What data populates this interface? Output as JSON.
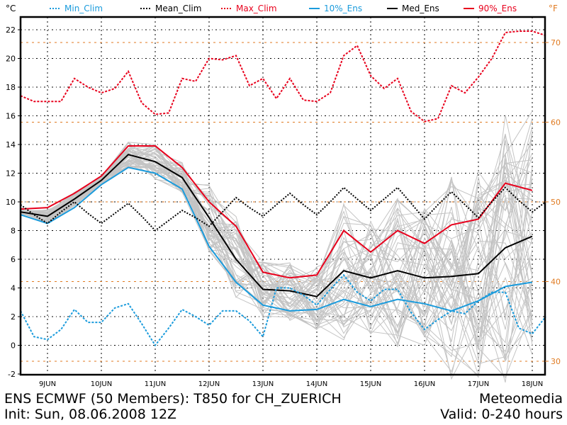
{
  "chart_data": {
    "type": "line",
    "title": "ENS ECMWF (50 Members): T850 for CH_ZUERICH",
    "subtitle": "Init: Sun, 08.06.2008 12Z",
    "provider": "Meteomedia",
    "validity": "Valid: 0-240 hours",
    "ylabel_left": "°C",
    "ylabel_right": "°F",
    "ylim": [
      -2,
      23
    ],
    "yticks_left": [
      -2,
      0,
      2,
      4,
      6,
      8,
      10,
      12,
      14,
      16,
      18,
      20,
      22
    ],
    "yticks_right": [
      30,
      40,
      50,
      60,
      70
    ],
    "xticks": [
      "9JUN",
      "10JUN",
      "11JUN",
      "12JUN",
      "13JUN",
      "14JUN",
      "15JUN",
      "16JUN",
      "17JUN",
      "18JUN"
    ],
    "x_hours_ens": [
      0,
      12,
      24,
      36,
      48,
      60,
      72,
      84,
      96,
      108,
      120,
      132,
      144,
      156,
      168,
      180,
      192,
      204,
      216,
      228
    ],
    "x_hours_clim": [
      0,
      6,
      12,
      18,
      24,
      30,
      36,
      42,
      48,
      54,
      60,
      66,
      72,
      78,
      84,
      90,
      96,
      102,
      108,
      114,
      120,
      126,
      132,
      138,
      144,
      150,
      156,
      162,
      168,
      174,
      180,
      186,
      192,
      198,
      204,
      210,
      216,
      222,
      228,
      234
    ],
    "xlim_hours": [
      0,
      234
    ],
    "grid": true,
    "legend": [
      {
        "key": "min_clim",
        "label": "Min_Clim",
        "color": "#1a9bdc",
        "style": "dotted"
      },
      {
        "key": "mean_clim",
        "label": "Mean_Clim",
        "color": "#000000",
        "style": "dotted"
      },
      {
        "key": "max_clim",
        "label": "Max_Clim",
        "color": "#e8001c",
        "style": "dotted"
      },
      {
        "key": "p10",
        "label": "10%_Ens",
        "color": "#1a9bdc",
        "style": "solid"
      },
      {
        "key": "med",
        "label": "Med_Ens",
        "color": "#000000",
        "style": "solid"
      },
      {
        "key": "p90",
        "label": "90%_Ens",
        "color": "#e8001c",
        "style": "solid"
      }
    ],
    "series": [
      {
        "name": "90%_Ens",
        "key": "p90",
        "values": [
          9.5,
          9.6,
          10.6,
          11.8,
          13.9,
          13.9,
          12.4,
          10.0,
          8.3,
          5.1,
          4.7,
          4.9,
          8.0,
          6.5,
          8.0,
          7.1,
          8.4,
          8.8,
          11.3,
          10.8
        ]
      },
      {
        "name": "Med_Ens",
        "key": "med",
        "values": [
          9.3,
          9.0,
          10.2,
          11.5,
          13.3,
          12.8,
          11.7,
          8.9,
          6.0,
          3.9,
          3.8,
          3.4,
          5.2,
          4.7,
          5.2,
          4.7,
          4.8,
          5.0,
          6.8,
          7.6
        ]
      },
      {
        "name": "10%_Ens",
        "key": "p10",
        "values": [
          9.1,
          8.5,
          9.6,
          11.2,
          12.4,
          12.0,
          10.9,
          6.9,
          4.4,
          2.8,
          2.4,
          2.5,
          3.2,
          2.7,
          3.2,
          2.9,
          2.4,
          3.1,
          4.1,
          4.4
        ]
      },
      {
        "name": "Max_Clim",
        "key": "max_clim",
        "values": [
          17.4,
          17.0,
          17.0,
          17.0,
          18.6,
          18.0,
          17.6,
          17.9,
          19.1,
          16.9,
          16.1,
          16.2,
          18.6,
          18.4,
          20.0,
          19.9,
          20.2,
          18.1,
          18.6,
          17.2,
          18.6,
          17.1,
          17.0,
          17.6,
          20.2,
          20.9,
          18.8,
          17.9,
          18.6,
          16.3,
          15.6,
          15.8,
          18.1,
          17.6,
          18.7,
          20.0,
          21.8,
          21.9,
          21.9,
          21.6
        ]
      },
      {
        "name": "Mean_Clim",
        "key": "mean_clim",
        "values": [
          9.8,
          9.1,
          8.5,
          9.3,
          10.0,
          9.2,
          8.5,
          9.2,
          9.9,
          9.0,
          8.0,
          8.7,
          9.4,
          8.9,
          8.3,
          9.3,
          10.3,
          9.6,
          9.0,
          9.8,
          10.6,
          9.8,
          9.1,
          10.0,
          11.0,
          10.2,
          9.4,
          10.2,
          11.0,
          9.9,
          8.8,
          9.8,
          10.7,
          9.8,
          8.9,
          10.0,
          11.0,
          10.1,
          9.3,
          10.0
        ]
      },
      {
        "name": "Min_Clim",
        "key": "min_clim",
        "values": [
          2.4,
          0.6,
          0.4,
          1.1,
          2.5,
          1.6,
          1.6,
          2.6,
          2.9,
          1.5,
          0.0,
          1.2,
          2.5,
          2.0,
          1.4,
          2.4,
          2.4,
          1.7,
          0.6,
          4.0,
          4.0,
          3.5,
          2.8,
          3.9,
          4.9,
          3.7,
          3.1,
          3.9,
          3.9,
          2.3,
          1.1,
          1.8,
          2.4,
          2.2,
          3.1,
          3.7,
          3.7,
          1.2,
          0.8,
          2.0
        ]
      }
    ],
    "members_count": 50
  }
}
